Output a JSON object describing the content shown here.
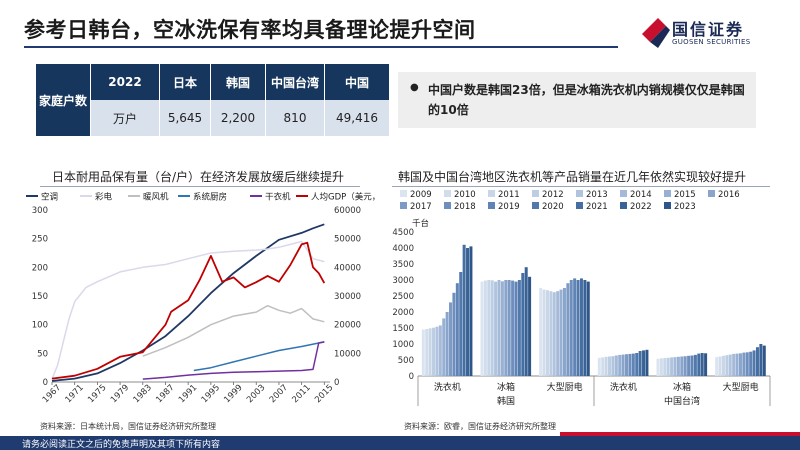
{
  "header": {
    "title": "参考日韩台，空冰洗保有率均具备理论提升空间",
    "logo_cn": "国信证券",
    "logo_en": "GUOSEN SECURITIES"
  },
  "household_table": {
    "row_header": "家庭户数",
    "columns": [
      "2022",
      "日本",
      "韩国",
      "中国台湾",
      "中国"
    ],
    "values": [
      "万户",
      "5,645",
      "2,200",
      "810",
      "49,416"
    ]
  },
  "callout": {
    "bullet": "●",
    "text": "中国户数是韩国23倍，但是冰箱洗衣机内销规模仅仅是韩国的10倍"
  },
  "left_panel": {
    "title": "日本耐用品保有量（台/户）在经济发展放缓后继续提升",
    "source": "资料来源：日本统计局，国信证券经济研究所整理"
  },
  "right_panel": {
    "title": "韩国及中国台湾地区洗衣机等产品销量在近几年依然实现较好提升",
    "source": "资料来源：欧睿，国信证券经济研究所整理"
  },
  "footer": {
    "disclaimer": "请务必阅读正文之后的免责声明及其项下所有内容"
  },
  "colors": {
    "navy": "#17365d",
    "accent_red": "#c8102e"
  },
  "chart_data": [
    {
      "type": "line",
      "title": "日本耐用品保有量（台/户）在经济发展放缓后继续提升",
      "x_ticks": [
        "1967",
        "1971",
        "1975",
        "1979",
        "1983",
        "1987",
        "1991",
        "1995",
        "1999",
        "2003",
        "2007",
        "2011",
        "2015"
      ],
      "xlim": [
        1967,
        2016
      ],
      "ylim": [
        0,
        300
      ],
      "y_ticks": [
        "0",
        "50",
        "100",
        "150",
        "200",
        "250",
        "300"
      ],
      "y2lim": [
        0,
        60000
      ],
      "y2_ticks": [
        "0",
        "10000",
        "20000",
        "30000",
        "40000",
        "50000",
        "60000"
      ],
      "series": [
        {
          "name": "空调",
          "axis": "left",
          "color": "#1f3864",
          "width": 1.8,
          "points": [
            [
              1967,
              2
            ],
            [
              1971,
              6
            ],
            [
              1975,
              15
            ],
            [
              1979,
              33
            ],
            [
              1983,
              55
            ],
            [
              1987,
              80
            ],
            [
              1991,
              115
            ],
            [
              1995,
              155
            ],
            [
              1999,
              190
            ],
            [
              2003,
              220
            ],
            [
              2007,
              248
            ],
            [
              2011,
              260
            ],
            [
              2013,
              268
            ],
            [
              2015,
              275
            ]
          ]
        },
        {
          "name": "彩电",
          "axis": "left",
          "color": "#d9d9ec",
          "width": 1.5,
          "points": [
            [
              1967,
              5
            ],
            [
              1968,
              30
            ],
            [
              1969,
              70
            ],
            [
              1970,
              110
            ],
            [
              1971,
              140
            ],
            [
              1973,
              165
            ],
            [
              1975,
              175
            ],
            [
              1979,
              192
            ],
            [
              1983,
              200
            ],
            [
              1987,
              205
            ],
            [
              1991,
              215
            ],
            [
              1995,
              225
            ],
            [
              1999,
              228
            ],
            [
              2003,
              230
            ],
            [
              2005,
              232
            ],
            [
              2007,
              235
            ],
            [
              2009,
              240
            ],
            [
              2011,
              245
            ],
            [
              2013,
              215
            ],
            [
              2015,
              210
            ]
          ]
        },
        {
          "name": "暖风机",
          "axis": "left",
          "color": "#bfbfbf",
          "width": 1.5,
          "points": [
            [
              1983,
              45
            ],
            [
              1987,
              60
            ],
            [
              1991,
              78
            ],
            [
              1995,
              100
            ],
            [
              1999,
              115
            ],
            [
              2003,
              122
            ],
            [
              2005,
              133
            ],
            [
              2007,
              125
            ],
            [
              2009,
              120
            ],
            [
              2011,
              128
            ],
            [
              2013,
              110
            ],
            [
              2015,
              105
            ]
          ]
        },
        {
          "name": "系统厨房",
          "axis": "left",
          "color": "#2e75b6",
          "width": 1.5,
          "points": [
            [
              1992,
              20
            ],
            [
              1995,
              25
            ],
            [
              1999,
              35
            ],
            [
              2003,
              45
            ],
            [
              2007,
              55
            ],
            [
              2011,
              62
            ],
            [
              2015,
              70
            ]
          ]
        },
        {
          "name": "干衣机",
          "axis": "left",
          "color": "#7030a0",
          "width": 1.5,
          "points": [
            [
              1983,
              5
            ],
            [
              1987,
              8
            ],
            [
              1991,
              12
            ],
            [
              1995,
              15
            ],
            [
              1999,
              17
            ],
            [
              2003,
              18
            ],
            [
              2007,
              19
            ],
            [
              2011,
              20
            ],
            [
              2013,
              22
            ],
            [
              2014,
              68
            ],
            [
              2015,
              70
            ]
          ]
        },
        {
          "name": "人均GDP（美元，右）",
          "axis": "right",
          "color": "#c00000",
          "width": 1.8,
          "points": [
            [
              1967,
              1200
            ],
            [
              1971,
              2200
            ],
            [
              1975,
              4600
            ],
            [
              1979,
              8800
            ],
            [
              1983,
              10400
            ],
            [
              1987,
              20000
            ],
            [
              1988,
              24500
            ],
            [
              1991,
              28500
            ],
            [
              1993,
              35500
            ],
            [
              1995,
              44000
            ],
            [
              1997,
              35000
            ],
            [
              1999,
              36500
            ],
            [
              2001,
              33000
            ],
            [
              2003,
              34800
            ],
            [
              2005,
              37000
            ],
            [
              2007,
              35000
            ],
            [
              2009,
              40800
            ],
            [
              2011,
              48000
            ],
            [
              2012,
              48600
            ],
            [
              2013,
              40000
            ],
            [
              2014,
              38000
            ],
            [
              2015,
              34500
            ]
          ]
        }
      ]
    },
    {
      "type": "bar",
      "title": "韩国及中国台湾地区洗衣机等产品销量在近几年依然实现较好提升",
      "ylabel": "千台",
      "ylim": [
        0,
        4500
      ],
      "y_ticks": [
        "0",
        "500",
        "1000",
        "1500",
        "2000",
        "2500",
        "3000",
        "3500",
        "4000",
        "4500"
      ],
      "years": [
        "2009",
        "2010",
        "2011",
        "2012",
        "2013",
        "2014",
        "2015",
        "2016",
        "2017",
        "2018",
        "2019",
        "2020",
        "2021",
        "2022",
        "2023"
      ],
      "year_colors": [
        "#dbe5f1",
        "#d2ddec",
        "#c8d6e8",
        "#bdcde3",
        "#b1c4de",
        "#a5bad8",
        "#98b0d2",
        "#8aa5cb",
        "#7c9ac4",
        "#6e8fbd",
        "#6084b5",
        "#5279ac",
        "#456ea2",
        "#396396",
        "#2f5688"
      ],
      "groups": [
        {
          "label": "洗衣机",
          "region": "韩国",
          "values": [
            1450,
            1470,
            1490,
            1510,
            1540,
            1580,
            1800,
            2000,
            2300,
            2600,
            2900,
            3250,
            4100,
            4000,
            4050
          ]
        },
        {
          "label": "冰箱",
          "region": "韩国",
          "values": [
            2950,
            2980,
            3000,
            2990,
            2950,
            3000,
            2960,
            3000,
            3000,
            2980,
            2950,
            3000,
            3220,
            3400,
            3100
          ]
        },
        {
          "label": "大型厨电",
          "region": "韩国",
          "values": [
            2750,
            2700,
            2680,
            2650,
            2620,
            2650,
            2700,
            2750,
            2900,
            3000,
            3050,
            3000,
            3050,
            3000,
            2950
          ]
        },
        {
          "label": "洗衣机",
          "region": "中国台湾",
          "values": [
            570,
            580,
            600,
            610,
            620,
            640,
            660,
            670,
            680,
            690,
            700,
            720,
            780,
            800,
            820
          ]
        },
        {
          "label": "冰箱",
          "region": "中国台湾",
          "values": [
            540,
            550,
            560,
            570,
            580,
            590,
            600,
            610,
            620,
            630,
            640,
            660,
            700,
            720,
            710
          ]
        },
        {
          "label": "大型厨电",
          "region": "中国台湾",
          "values": [
            590,
            610,
            630,
            650,
            670,
            690,
            700,
            710,
            730,
            740,
            760,
            800,
            900,
            1000,
            950
          ]
        }
      ],
      "regions": [
        "韩国",
        "中国台湾"
      ]
    }
  ]
}
